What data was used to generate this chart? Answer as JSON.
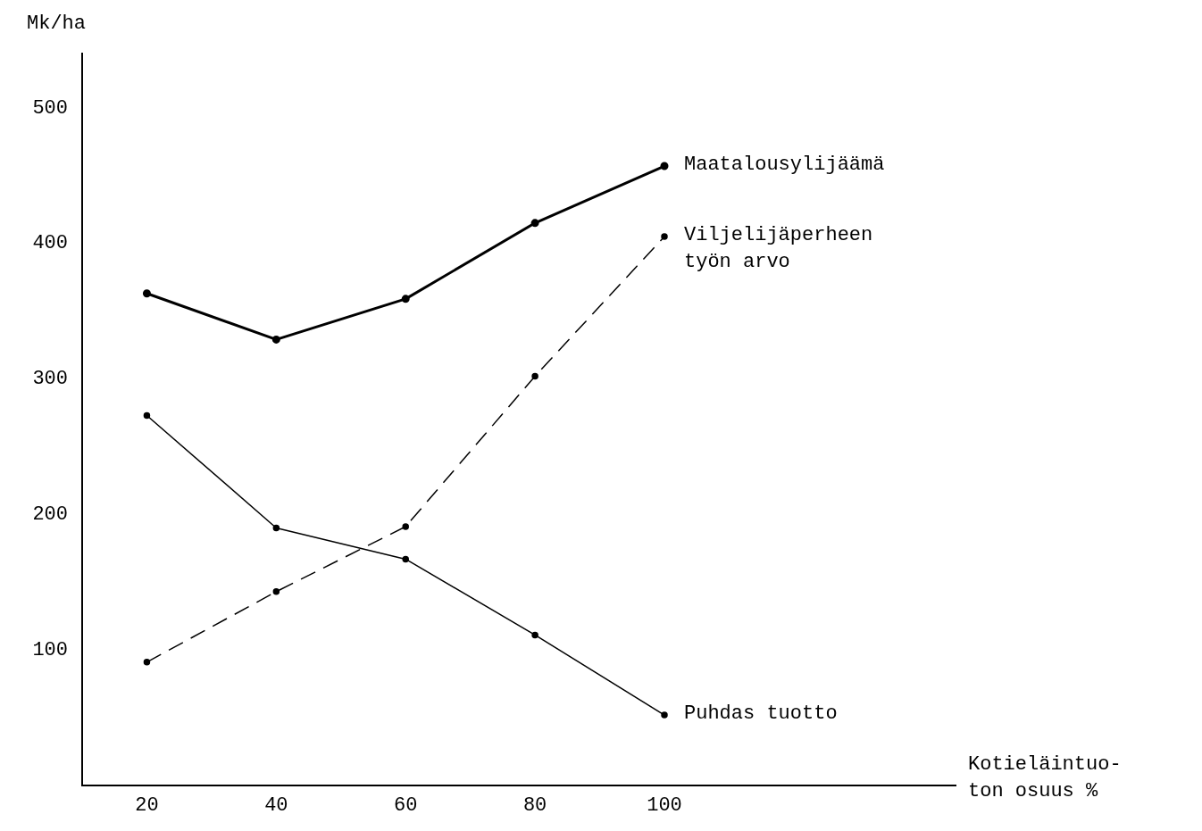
{
  "chart_data": {
    "type": "line",
    "xlabel": "Kotieläintuo-\nton osuus %",
    "ylabel": "Mk/ha",
    "x": [
      20,
      40,
      60,
      80,
      100
    ],
    "xlim": [
      10,
      145
    ],
    "xticks": [
      20,
      40,
      60,
      80,
      100
    ],
    "ylim": [
      0,
      540
    ],
    "yticks": [
      100,
      200,
      300,
      400,
      500
    ],
    "grid": false,
    "legend": false,
    "marker": "circle",
    "series": [
      {
        "name": "Maatalousylijäämä",
        "color": "#000000",
        "line_style": "solid",
        "values": [
          363,
          329,
          359,
          415,
          457
        ]
      },
      {
        "name": "Viljelijäperheen\ntyön arvo",
        "color": "#000000",
        "line_style": "dashed",
        "values": [
          91,
          143,
          191,
          302,
          405
        ]
      },
      {
        "name": "Puhdas tuotto",
        "color": "#000000",
        "line_style": "solid",
        "values": [
          273,
          190,
          167,
          111,
          52
        ]
      }
    ]
  }
}
